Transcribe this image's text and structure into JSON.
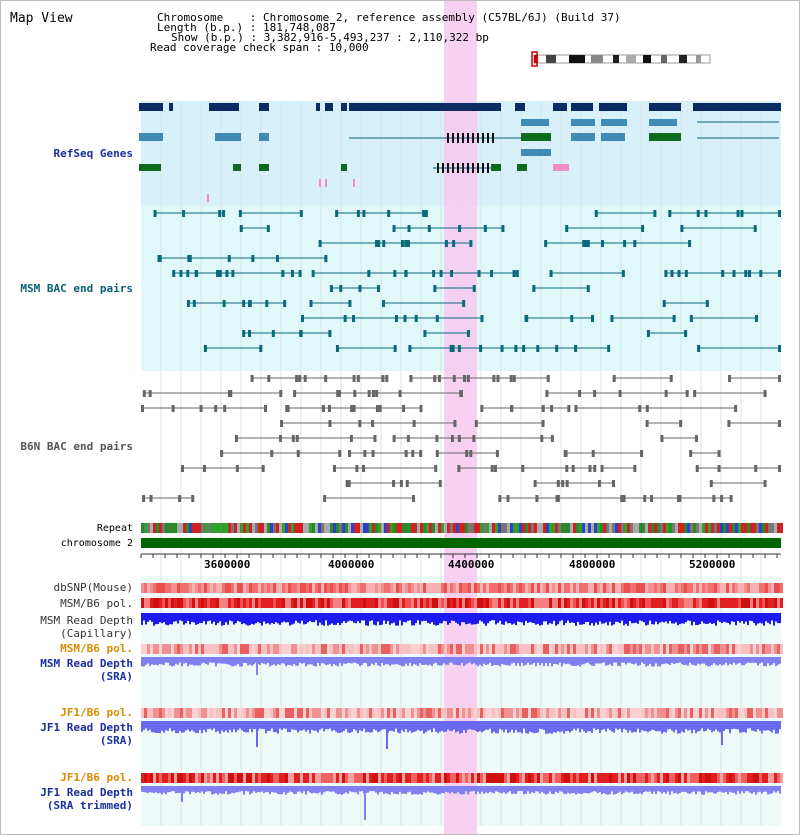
{
  "view_title": "Map View",
  "info": {
    "chromosome_label": "Chromosome",
    "chromosome_value": "Chromosome 2, reference assembly (C57BL/6J) (Build 37)",
    "length_label": "Length (b.p.)",
    "length_value": "181,748,087",
    "show_label": "Show (b.p.)",
    "show_value": "3,382,916-5,493,237 : 2,110,322 bp",
    "span_label": "Read coverage check span",
    "span_value": "10,000"
  },
  "tracks": {
    "refseq": "RefSeq Genes",
    "msm_bac": "MSM BAC end pairs",
    "b6n_bac": "B6N BAC end pairs",
    "repeat": "Repeat",
    "chromosome": "chromosome 2",
    "dbsnp": "dbSNP(Mouse)",
    "msm_b6_pol": "MSM/B6 pol.",
    "msm_read_cap_1": "MSM Read Depth",
    "msm_read_cap_2": "(Capillary)",
    "msm_b6_pol2": "MSM/B6 pol.",
    "msm_read_sra_1": "MSM Read Depth",
    "msm_read_sra_2": "(SRA)",
    "jf1_pol": "JF1/B6 pol.",
    "jf1_read_sra_1": "JF1 Read Depth",
    "jf1_read_sra_2": "(SRA)",
    "jf1_pol2": "JF1/B6 pol.",
    "jf1_read_trim_1": "JF1 Read Depth",
    "jf1_read_trim_2": "(SRA trimmed)"
  },
  "ruler": {
    "ticks": [
      "3600000",
      "4000000",
      "4400000",
      "4800000",
      "5200000"
    ]
  },
  "colors": {
    "refseq_label": "#1a2fa0",
    "msm_label": "#0a5f78",
    "b6n_label": "#555555",
    "orange_label": "#e08a00",
    "blue_label": "#1a2fa0",
    "highlight": "#f7c9f0",
    "refseq_bg": "#d8f0fa",
    "msm_bg": "#e0f8fa",
    "chrom_green": "#006400"
  }
}
